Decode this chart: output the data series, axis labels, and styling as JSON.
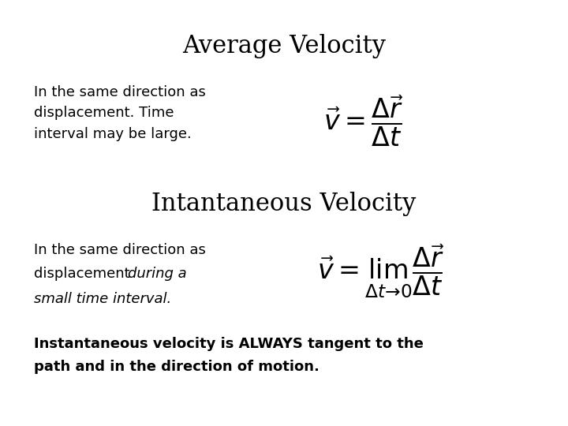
{
  "title": "Average Velocity",
  "title2": "Intantaneous Velocity",
  "text1_line1": "In the same direction as",
  "text1_line2": "displacement. Time",
  "text1_line3": "interval may be large.",
  "text2_line1": "In the same direction as",
  "text2_line2": "displacement ",
  "text2_line2_italic": "during a",
  "text2_line3_italic": "small time interval.",
  "text3_line1": "Instantaneous velocity is ALWAYS tangent to the",
  "text3_line2": "path and in the direction of motion.",
  "bg_color": "#ffffff",
  "text_color": "#000000",
  "title_fontsize": 22,
  "body_fontsize": 13,
  "formula_fontsize": 24,
  "bold_fontsize": 13
}
